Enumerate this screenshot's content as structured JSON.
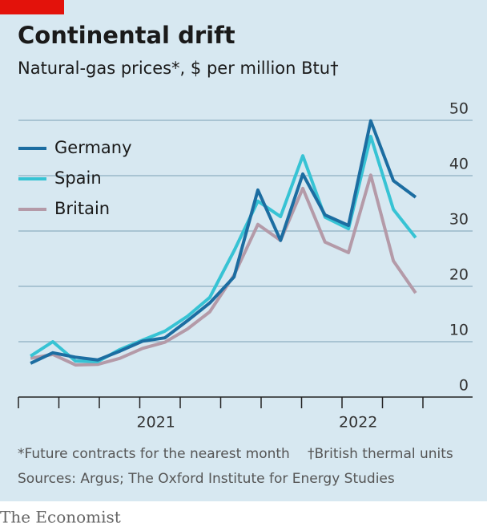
{
  "chart_data": {
    "type": "line",
    "title": "Continental drift",
    "subtitle": "Natural-gas prices*, $ per million Btu†",
    "x": [
      0.3,
      0.85,
      1.41,
      1.96,
      2.51,
      3.07,
      3.62,
      4.18,
      4.73,
      5.33,
      5.92,
      6.48,
      7.03,
      7.58,
      8.16,
      8.71,
      9.27,
      9.82
    ],
    "series": [
      {
        "name": "Germany",
        "color": "#1c6da1",
        "values": [
          6.1,
          8.0,
          7.2,
          6.7,
          8.3,
          10.1,
          10.7,
          13.8,
          17.0,
          21.7,
          37.4,
          28.3,
          40.3,
          32.9,
          31.0,
          49.9,
          39.1,
          36.1
        ]
      },
      {
        "name": "Spain",
        "color": "#37c3d4",
        "values": [
          7.4,
          10.0,
          6.5,
          6.4,
          8.6,
          10.3,
          11.9,
          14.6,
          18.0,
          26.4,
          35.4,
          32.6,
          43.6,
          32.5,
          30.4,
          47.1,
          33.9,
          28.8
        ]
      },
      {
        "name": "Britain",
        "color": "#b49aa8",
        "values": [
          7.0,
          7.7,
          5.8,
          5.9,
          7.0,
          8.8,
          9.9,
          12.3,
          15.4,
          22.0,
          31.2,
          28.3,
          37.7,
          28.0,
          26.1,
          40.1,
          24.6,
          18.8
        ]
      }
    ],
    "xlim": [
      0,
      10
    ],
    "xticks": [
      0,
      1,
      2,
      3,
      4,
      5,
      6,
      7,
      8,
      9,
      10
    ],
    "xlabels": [
      {
        "value": 3.4,
        "label": "2021"
      },
      {
        "value": 8.4,
        "label": "2022"
      }
    ],
    "ylim": [
      0,
      50
    ],
    "yticks": [
      0,
      10,
      20,
      30,
      40,
      50
    ],
    "grid": true,
    "legend": "top-left",
    "footnotes": [
      "*Future contracts for the nearest month",
      "†British thermal units"
    ],
    "source": "Sources: Argus; The Oxford Institute for Energy Studies",
    "brand": "The Economist"
  }
}
